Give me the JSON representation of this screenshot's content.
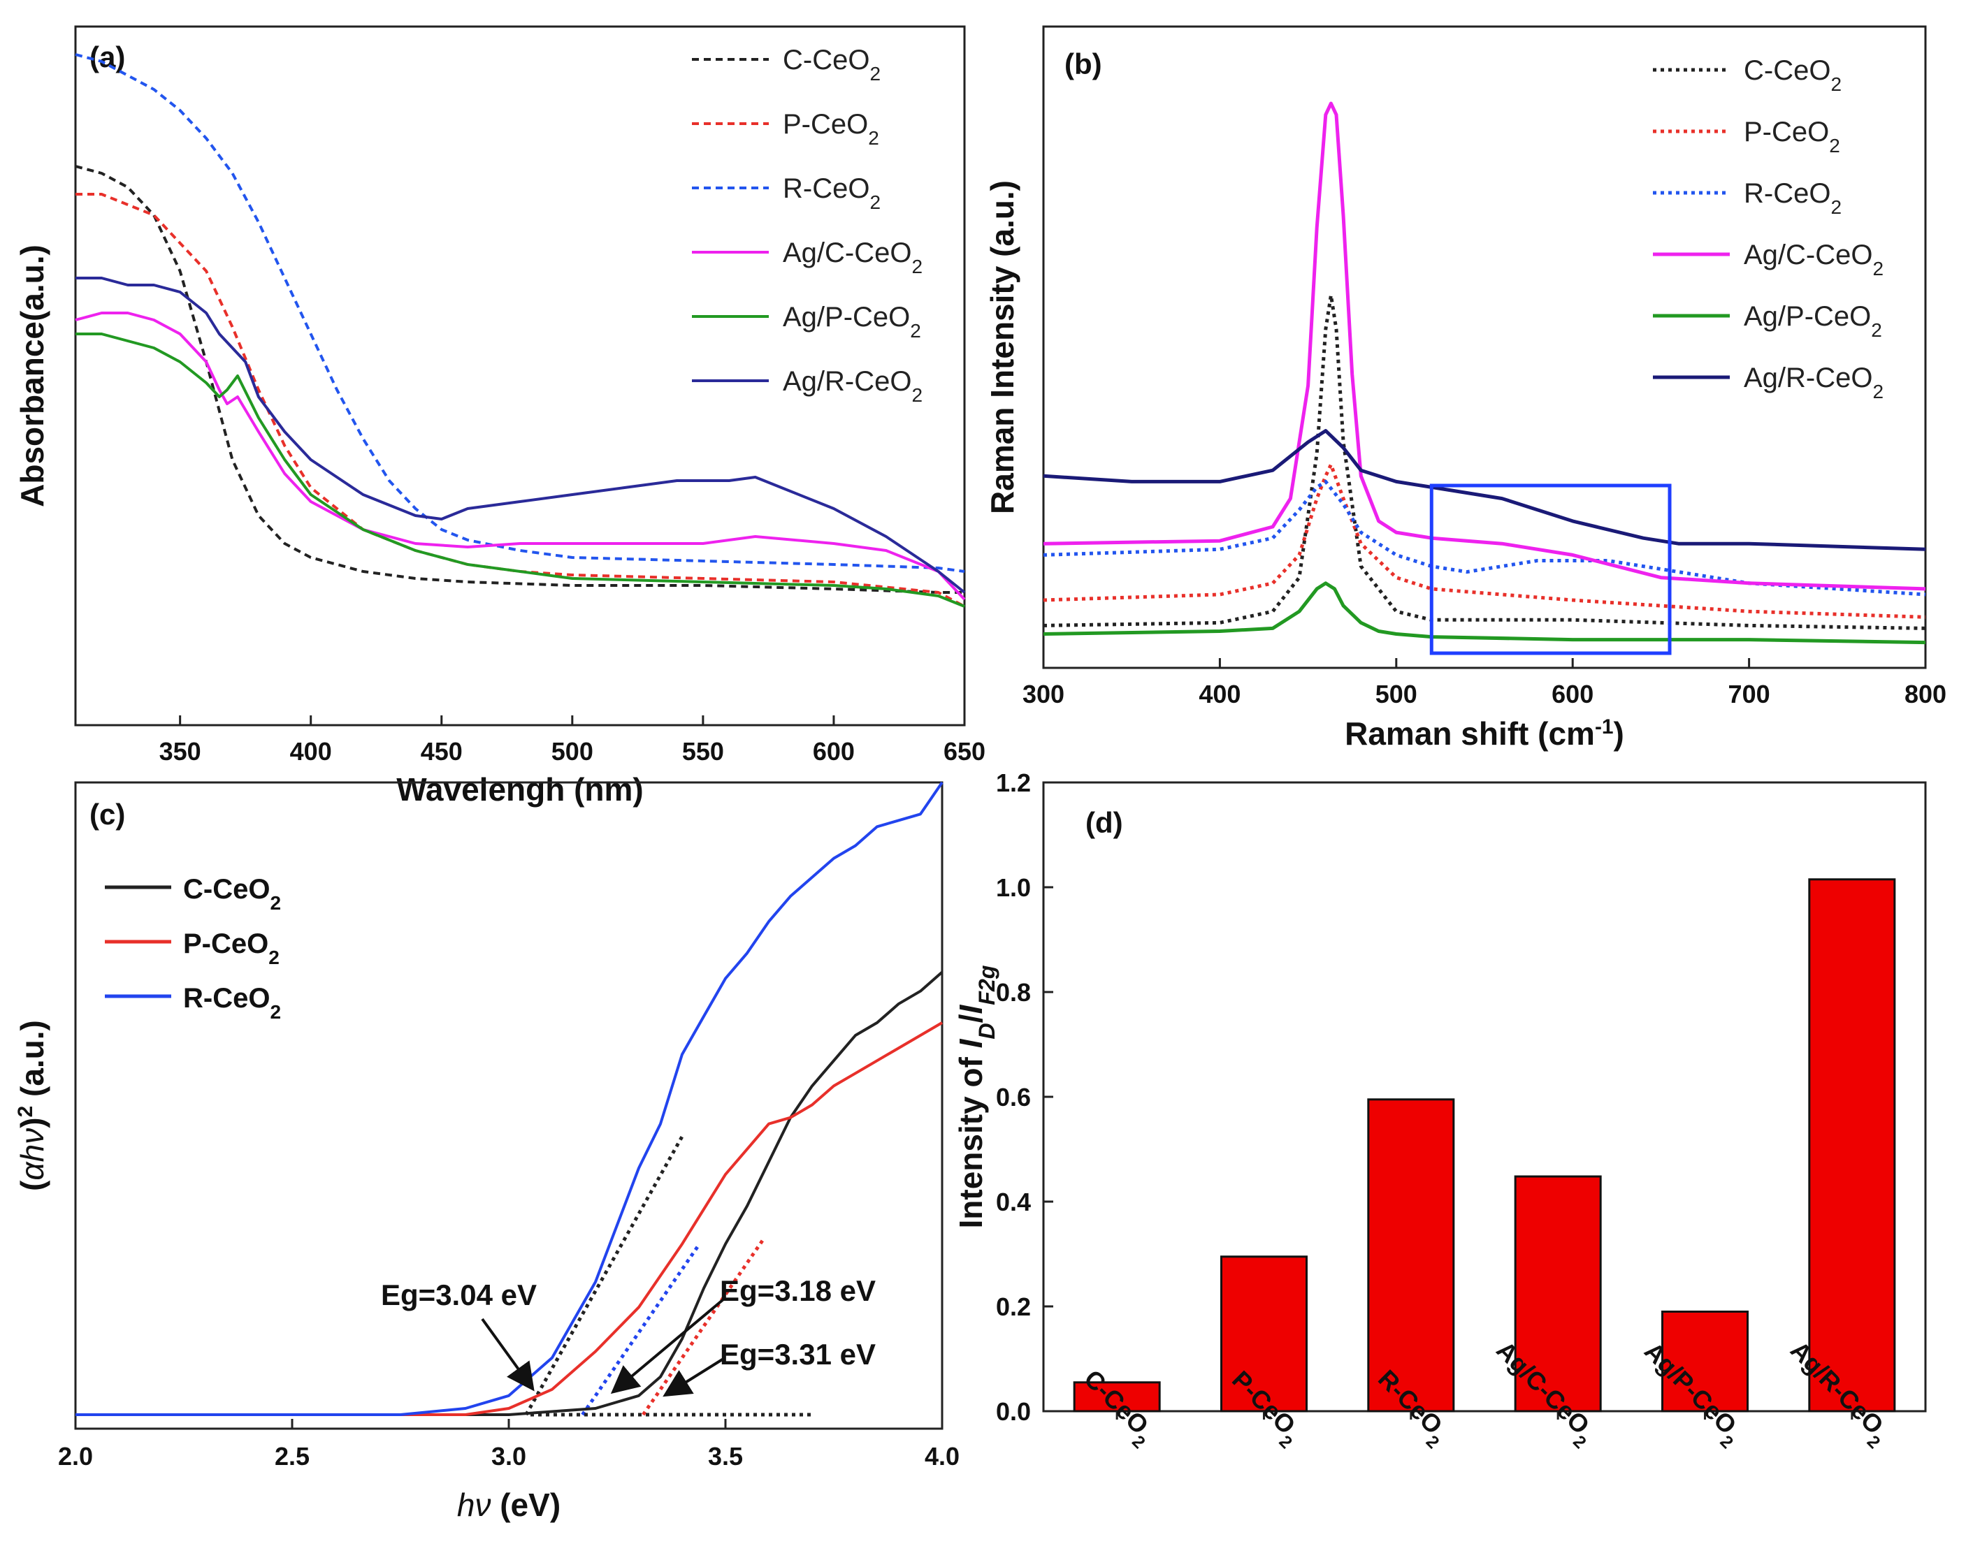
{
  "chart_data": [
    {
      "panel": "(a)",
      "type": "line",
      "xlabel": "Wavelengh (nm)",
      "ylabel": "Absorbance(a.u.)",
      "xlim": [
        310,
        650
      ],
      "ylim": [
        0,
        1.0
      ],
      "xticks": [
        350,
        400,
        450,
        500,
        550,
        600,
        650
      ],
      "legend_position": "top-right",
      "series": [
        {
          "name": "C-CeO₂",
          "color": "#222222",
          "dashed": true,
          "x": [
            310,
            320,
            330,
            340,
            350,
            360,
            370,
            380,
            390,
            400,
            420,
            440,
            460,
            500,
            550,
            600,
            640,
            650
          ],
          "y": [
            0.8,
            0.79,
            0.77,
            0.73,
            0.65,
            0.52,
            0.38,
            0.3,
            0.26,
            0.24,
            0.22,
            0.21,
            0.205,
            0.2,
            0.2,
            0.195,
            0.19,
            0.19
          ]
        },
        {
          "name": "P-CeO₂",
          "color": "#e8302a",
          "dashed": true,
          "x": [
            310,
            320,
            340,
            360,
            370,
            380,
            390,
            400,
            420,
            440,
            460,
            480,
            500,
            550,
            600,
            640,
            650
          ],
          "y": [
            0.76,
            0.76,
            0.73,
            0.65,
            0.57,
            0.48,
            0.4,
            0.34,
            0.28,
            0.25,
            0.23,
            0.22,
            0.215,
            0.21,
            0.205,
            0.19,
            0.17
          ]
        },
        {
          "name": "R-CeO₂",
          "color": "#2255ee",
          "dashed": true,
          "x": [
            310,
            320,
            330,
            340,
            350,
            360,
            370,
            380,
            390,
            400,
            410,
            420,
            430,
            440,
            450,
            460,
            480,
            500,
            550,
            600,
            640,
            650
          ],
          "y": [
            0.96,
            0.95,
            0.93,
            0.91,
            0.88,
            0.84,
            0.79,
            0.72,
            0.64,
            0.56,
            0.48,
            0.41,
            0.35,
            0.31,
            0.28,
            0.265,
            0.25,
            0.24,
            0.235,
            0.23,
            0.225,
            0.22
          ]
        },
        {
          "name": "Ag/C-CeO₂",
          "color": "#ee22ee",
          "dashed": false,
          "x": [
            310,
            320,
            330,
            340,
            350,
            360,
            365,
            368,
            372,
            380,
            390,
            400,
            420,
            440,
            460,
            480,
            500,
            520,
            550,
            570,
            600,
            620,
            640,
            650
          ],
          "y": [
            0.58,
            0.59,
            0.59,
            0.58,
            0.56,
            0.52,
            0.48,
            0.46,
            0.47,
            0.42,
            0.36,
            0.32,
            0.28,
            0.26,
            0.255,
            0.26,
            0.26,
            0.26,
            0.26,
            0.27,
            0.26,
            0.25,
            0.22,
            0.18
          ]
        },
        {
          "name": "Ag/P-CeO₂",
          "color": "#229922",
          "dashed": false,
          "x": [
            310,
            320,
            330,
            340,
            350,
            360,
            365,
            368,
            372,
            380,
            390,
            400,
            420,
            440,
            460,
            500,
            550,
            600,
            620,
            640,
            650
          ],
          "y": [
            0.56,
            0.56,
            0.55,
            0.54,
            0.52,
            0.49,
            0.47,
            0.48,
            0.5,
            0.44,
            0.38,
            0.33,
            0.28,
            0.25,
            0.23,
            0.21,
            0.205,
            0.2,
            0.195,
            0.185,
            0.17
          ]
        },
        {
          "name": "Ag/R-CeO₂",
          "color": "#2a2a99",
          "dashed": false,
          "x": [
            310,
            320,
            330,
            340,
            350,
            360,
            365,
            370,
            375,
            380,
            390,
            400,
            420,
            440,
            450,
            460,
            480,
            500,
            520,
            540,
            560,
            570,
            580,
            600,
            620,
            640,
            650
          ],
          "y": [
            0.64,
            0.64,
            0.63,
            0.63,
            0.62,
            0.59,
            0.56,
            0.54,
            0.52,
            0.47,
            0.42,
            0.38,
            0.33,
            0.3,
            0.295,
            0.31,
            0.32,
            0.33,
            0.34,
            0.35,
            0.35,
            0.355,
            0.34,
            0.31,
            0.27,
            0.22,
            0.19
          ]
        }
      ]
    },
    {
      "panel": "(b)",
      "type": "line",
      "xlabel": "Raman shift (cm",
      "xlabel_sup": "-1",
      "xlabel_tail": ")",
      "ylabel": "Raman Intensity (a.u.)",
      "xlim": [
        300,
        800
      ],
      "ylim": [
        0,
        1.0
      ],
      "xticks": [
        300,
        400,
        500,
        600,
        700,
        800
      ],
      "legend_position": "top-right",
      "highlight_box_x_range": [
        520,
        655
      ],
      "series": [
        {
          "name": "C-CeO₂",
          "color": "#222222",
          "dotted": true,
          "x": [
            300,
            400,
            430,
            445,
            455,
            460,
            463,
            466,
            470,
            480,
            500,
            520,
            600,
            700,
            800
          ],
          "y": [
            0.075,
            0.08,
            0.1,
            0.16,
            0.38,
            0.6,
            0.66,
            0.6,
            0.4,
            0.18,
            0.1,
            0.085,
            0.085,
            0.075,
            0.07
          ]
        },
        {
          "name": "P-CeO₂",
          "color": "#e8302a",
          "dotted": true,
          "x": [
            300,
            400,
            430,
            445,
            455,
            460,
            463,
            470,
            480,
            500,
            520,
            560,
            600,
            700,
            800
          ],
          "y": [
            0.12,
            0.13,
            0.15,
            0.2,
            0.3,
            0.34,
            0.36,
            0.3,
            0.22,
            0.16,
            0.14,
            0.13,
            0.12,
            0.1,
            0.09
          ]
        },
        {
          "name": "R-CeO₂",
          "color": "#2255ee",
          "dotted": true,
          "x": [
            300,
            400,
            430,
            445,
            455,
            460,
            470,
            480,
            500,
            520,
            540,
            580,
            620,
            660,
            700,
            800
          ],
          "y": [
            0.2,
            0.21,
            0.23,
            0.28,
            0.32,
            0.33,
            0.29,
            0.24,
            0.2,
            0.18,
            0.17,
            0.19,
            0.19,
            0.17,
            0.15,
            0.13
          ]
        },
        {
          "name": "Ag/C-CeO₂",
          "color": "#ee22ee",
          "dotted": false,
          "x": [
            300,
            400,
            430,
            440,
            450,
            455,
            460,
            463,
            466,
            470,
            475,
            480,
            490,
            500,
            520,
            560,
            600,
            650,
            700,
            800
          ],
          "y": [
            0.22,
            0.225,
            0.25,
            0.3,
            0.5,
            0.78,
            0.98,
            1.0,
            0.98,
            0.8,
            0.52,
            0.34,
            0.26,
            0.24,
            0.23,
            0.22,
            0.2,
            0.16,
            0.15,
            0.14
          ]
        },
        {
          "name": "Ag/P-CeO₂",
          "color": "#229922",
          "dotted": false,
          "x": [
            300,
            400,
            430,
            445,
            455,
            460,
            465,
            470,
            480,
            490,
            500,
            520,
            600,
            700,
            800
          ],
          "y": [
            0.06,
            0.065,
            0.07,
            0.1,
            0.14,
            0.15,
            0.14,
            0.11,
            0.08,
            0.065,
            0.06,
            0.055,
            0.05,
            0.05,
            0.045
          ]
        },
        {
          "name": "Ag/R-CeO₂",
          "color": "#1a1a77",
          "dotted": false,
          "x": [
            300,
            350,
            400,
            430,
            450,
            460,
            470,
            480,
            500,
            520,
            560,
            600,
            640,
            660,
            700,
            800
          ],
          "y": [
            0.34,
            0.33,
            0.33,
            0.35,
            0.4,
            0.42,
            0.39,
            0.35,
            0.33,
            0.32,
            0.3,
            0.26,
            0.23,
            0.22,
            0.22,
            0.21
          ]
        }
      ]
    },
    {
      "panel": "(c)",
      "type": "line",
      "xlabel_italic": "hν",
      "xlabel_rest": " (eV)",
      "ylabel_pre": "(",
      "ylabel_italic": "αhν",
      "ylabel_post": ")",
      "ylabel_sup": "2",
      "ylabel_tail": " (a.u.)",
      "xlim": [
        2.0,
        4.0
      ],
      "ylim": [
        0,
        1.0
      ],
      "xticks": [
        2.0,
        2.5,
        3.0,
        3.5,
        4.0
      ],
      "legend_position": "top-left",
      "series": [
        {
          "name": "C-CeO₂",
          "color": "#222222",
          "x": [
            2.0,
            3.0,
            3.2,
            3.3,
            3.35,
            3.4,
            3.45,
            3.5,
            3.55,
            3.6,
            3.65,
            3.7,
            3.75,
            3.8,
            3.85,
            3.9,
            3.95,
            4.0
          ],
          "y": [
            0.0,
            0.0,
            0.01,
            0.03,
            0.06,
            0.12,
            0.2,
            0.27,
            0.33,
            0.4,
            0.47,
            0.52,
            0.56,
            0.6,
            0.62,
            0.65,
            0.67,
            0.7
          ]
        },
        {
          "name": "P-CeO₂",
          "color": "#e8302a",
          "x": [
            2.0,
            2.9,
            3.0,
            3.1,
            3.2,
            3.3,
            3.4,
            3.5,
            3.6,
            3.65,
            3.7,
            3.75,
            3.8,
            3.85,
            3.9,
            3.95,
            4.0
          ],
          "y": [
            0.0,
            0.0,
            0.01,
            0.04,
            0.1,
            0.17,
            0.27,
            0.38,
            0.46,
            0.47,
            0.49,
            0.52,
            0.54,
            0.56,
            0.58,
            0.6,
            0.62
          ]
        },
        {
          "name": "R-CeO₂",
          "color": "#2244ee",
          "x": [
            2.0,
            2.75,
            2.9,
            3.0,
            3.1,
            3.2,
            3.3,
            3.35,
            3.4,
            3.45,
            3.5,
            3.55,
            3.6,
            3.65,
            3.7,
            3.75,
            3.8,
            3.85,
            3.9,
            3.95,
            4.0
          ],
          "y": [
            0.0,
            0.0,
            0.01,
            0.03,
            0.09,
            0.21,
            0.39,
            0.46,
            0.57,
            0.63,
            0.69,
            0.73,
            0.78,
            0.82,
            0.85,
            0.88,
            0.9,
            0.93,
            0.94,
            0.95,
            1.0
          ]
        }
      ],
      "fit_lines": [
        {
          "color": "#222222",
          "x": [
            3.04,
            3.4
          ],
          "y": [
            0.0,
            0.44
          ]
        },
        {
          "color": "#2244ee",
          "x": [
            3.17,
            3.44
          ],
          "y": [
            0.0,
            0.27
          ]
        },
        {
          "color": "#e8302a",
          "x": [
            3.31,
            3.59
          ],
          "y": [
            0.0,
            0.28
          ]
        },
        {
          "color": "#222222",
          "x": [
            3.05,
            3.7
          ],
          "y": [
            0.0,
            0.0
          ]
        }
      ],
      "annotations": [
        {
          "text": "Eg=3.04 eV"
        },
        {
          "text": "Eg=3.18 eV"
        },
        {
          "text": "Eg=3.31 eV"
        }
      ]
    },
    {
      "panel": "(d)",
      "type": "bar",
      "ylabel_pre": "Intensity of ",
      "ylabel_italic": "I",
      "ylabel_sub1": "D",
      "ylabel_mid": "/",
      "ylabel_italic2": "I",
      "ylabel_sub2": "F2g",
      "ylim": [
        0,
        1.2
      ],
      "yticks": [
        0.0,
        0.2,
        0.4,
        0.6,
        0.8,
        1.0,
        1.2
      ],
      "bar_color": "#ee0000",
      "categories": [
        "C-CeO₂",
        "P-CeO₂",
        "R-CeO₂",
        "Ag/C-CeO₂",
        "Ag/P-CeO₂",
        "Ag/R-CeO₂"
      ],
      "values": [
        0.055,
        0.295,
        0.595,
        0.448,
        0.19,
        1.015
      ]
    }
  ]
}
